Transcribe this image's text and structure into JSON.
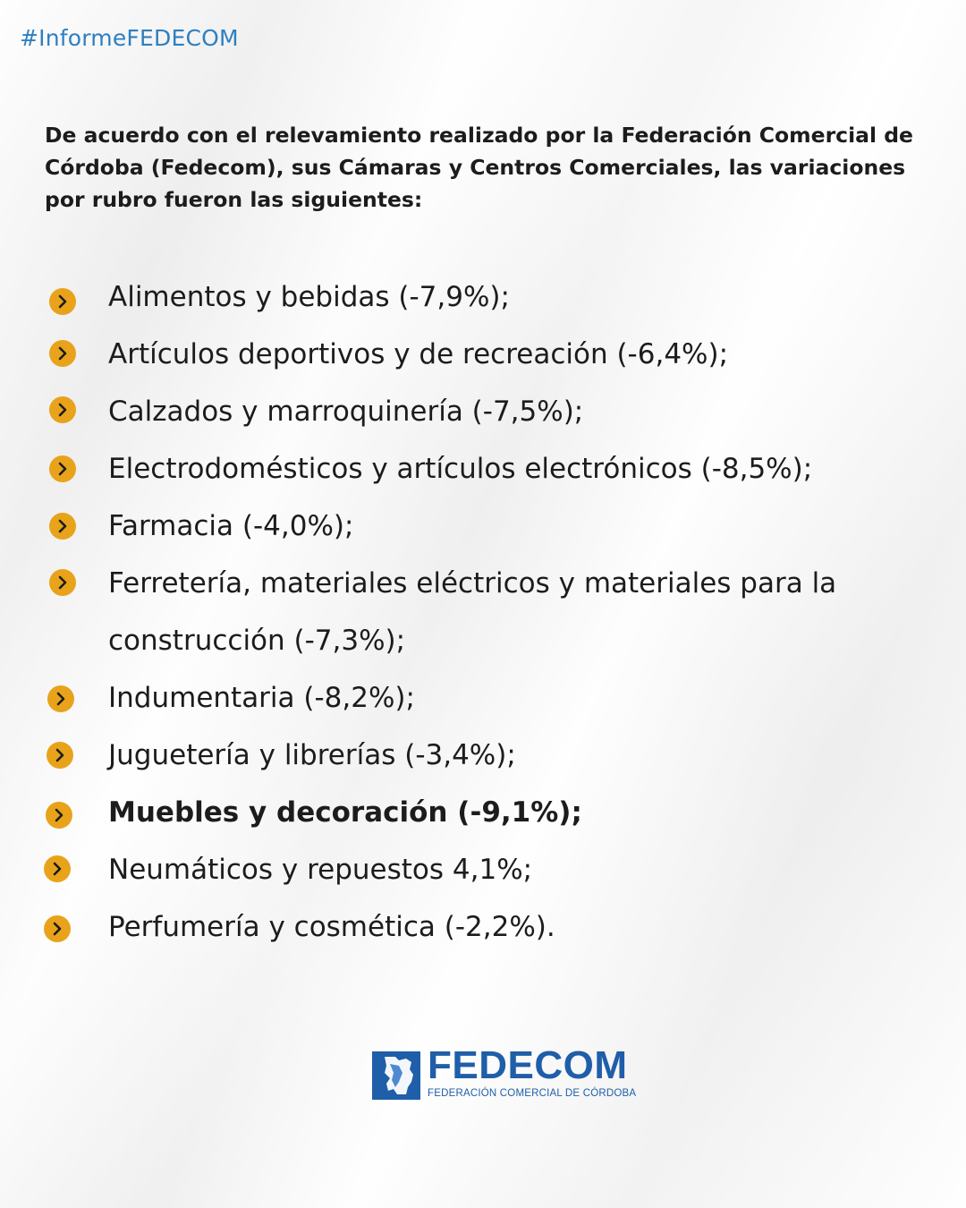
{
  "hashtag": "#InformeFEDECOM",
  "intro": "De acuerdo con el relevamiento realizado por la Federación Comercial de Córdoba (Fedecom), sus Cámaras y Centros Comerciales, las variaciones por rubro fueron las siguientes:",
  "items": [
    {
      "text": "Alimentos y bebidas (-7,9%);"
    },
    {
      "text": "Artículos deportivos y de recreación (-6,4%);"
    },
    {
      "text": "Calzados y marroquinería (-7,5%);"
    },
    {
      "text": "Electrodomésticos y artículos electrónicos (-8,5%);"
    },
    {
      "text": "Farmacia (-4,0%);"
    },
    {
      "text": "Ferretería, materiales eléctricos y materiales para la",
      "text2": "construcción (-7,3%);"
    },
    {
      "text": "Indumentaria (-8,2%);"
    },
    {
      "text": "Juguetería y librerías (-3,4%);"
    },
    {
      "text": "Muebles y decoración (-9,1%);"
    },
    {
      "text": "Neumáticos y repuestos 4,1%;"
    },
    {
      "text": "Perfumería y cosmética (-2,2%)."
    }
  ],
  "logo": {
    "name": "FEDECOM",
    "subtitle": "FEDERACIÓN COMERCIAL DE CÓRDOBA"
  },
  "colors": {
    "accent": "#e8a31b",
    "brand": "#1f5ea8",
    "hashtag": "#2e7fc1",
    "text": "#1c1c1c"
  },
  "icons": {
    "bullet": "chevron-right-icon",
    "logo": "cordoba-map-icon"
  }
}
